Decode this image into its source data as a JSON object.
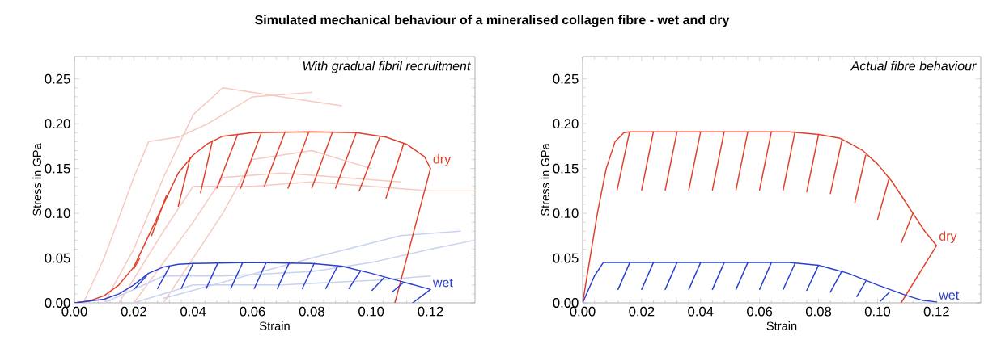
{
  "chart_data": [
    {
      "type": "line",
      "title": "Simulated mechanical behaviour of a mineralised collagen fibre - wet and dry",
      "xlabel": "Strain",
      "ylabel": "Stress in GPa",
      "annotations": [
        "With gradual fibril recruitment"
      ],
      "marker": "none",
      "line_style": "solid",
      "xlim": [
        0,
        0.135
      ],
      "ylim": [
        0,
        0.275
      ],
      "xticks": [
        {
          "value": 0,
          "label": "0.00"
        },
        {
          "value": 0.02,
          "label": "0.02"
        },
        {
          "value": 0.04,
          "label": "0.04"
        },
        {
          "value": 0.06,
          "label": "0.06"
        },
        {
          "value": 0.08,
          "label": "0.08"
        },
        {
          "value": 0.1,
          "label": "0.10"
        },
        {
          "value": 0.12,
          "label": "0.12"
        }
      ],
      "yticks": [
        {
          "value": 0,
          "label": "0.00"
        },
        {
          "value": 0.05,
          "label": "0.05"
        },
        {
          "value": 0.1,
          "label": "0.10"
        },
        {
          "value": 0.15,
          "label": "0.15"
        },
        {
          "value": 0.2,
          "label": "0.20"
        },
        {
          "value": 0.25,
          "label": "0.25"
        }
      ],
      "series": [
        {
          "color": "#f6c9c2",
          "x": [
            0.003,
            0.01,
            0.02,
            0.025,
            0.035,
            0.045,
            0.06,
            0.08
          ],
          "values": [
            0,
            0.05,
            0.14,
            0.18,
            0.185,
            0.2,
            0.23,
            0.235
          ]
        },
        {
          "color": "#f6c9c2",
          "x": [
            0.01,
            0.02,
            0.03,
            0.04,
            0.05,
            0.07,
            0.09
          ],
          "values": [
            0,
            0.06,
            0.14,
            0.21,
            0.24,
            0.23,
            0.22
          ]
        },
        {
          "color": "#f6c9c2",
          "x": [
            0.015,
            0.03,
            0.04,
            0.06,
            0.08,
            0.1,
            0.12,
            0.135
          ],
          "values": [
            0,
            0.08,
            0.13,
            0.13,
            0.135,
            0.13,
            0.125,
            0.125
          ]
        },
        {
          "color": "#f6c9c2",
          "x": [
            0.02,
            0.04,
            0.05,
            0.07,
            0.09,
            0.11
          ],
          "values": [
            0,
            0.09,
            0.14,
            0.145,
            0.14,
            0.135
          ]
        },
        {
          "color": "#f6c9c2",
          "x": [
            0.03,
            0.05,
            0.06,
            0.08,
            0.1
          ],
          "values": [
            0,
            0.1,
            0.16,
            0.17,
            0.15
          ]
        },
        {
          "color": "#c8d2f0",
          "x": [
            0.01,
            0.03,
            0.05,
            0.08,
            0.1,
            0.12,
            0.135
          ],
          "values": [
            0,
            0.03,
            0.03,
            0.035,
            0.045,
            0.06,
            0.07
          ]
        },
        {
          "color": "#c8d2f0",
          "x": [
            0.02,
            0.04,
            0.07,
            0.1,
            0.12
          ],
          "values": [
            0,
            0.02,
            0.02,
            0.025,
            0.03
          ]
        },
        {
          "color": "#c8d2f0",
          "x": [
            0.03,
            0.08,
            0.11,
            0.13
          ],
          "values": [
            0.005,
            0.05,
            0.075,
            0.08
          ]
        },
        {
          "name": "dry",
          "color": "#e0402a",
          "x": [
            0,
            0.005,
            0.01,
            0.015,
            0.02,
            0.025,
            0.03,
            0.035,
            0.04,
            0.045,
            0.05,
            0.06,
            0.08,
            0.095,
            0.105,
            0.112,
            0.118,
            0.12,
            0.108
          ],
          "values": [
            0,
            0.002,
            0.008,
            0.02,
            0.04,
            0.075,
            0.11,
            0.145,
            0.165,
            0.178,
            0.186,
            0.19,
            0.191,
            0.19,
            0.185,
            0.177,
            0.163,
            0.15,
            0
          ]
        },
        {
          "color": "#e0402a",
          "x": [
            0.022,
            0.02,
            0.021,
            0.031,
            0.026,
            0.028,
            0.039,
            0.035,
            0.037,
            0.0465,
            0.0425,
            0.044,
            0.055,
            0.048,
            0.05,
            0.063,
            0.056,
            0.058,
            0.071,
            0.064,
            0.066,
            0.079,
            0.072,
            0.074,
            0.087,
            0.08,
            0.082,
            0.095,
            0.088,
            0.09,
            0.103,
            0.096,
            0.098,
            0.111,
            0.105
          ],
          "values": [
            0.05,
            0.038,
            null,
            0.12,
            0.075,
            null,
            0.162,
            0.108,
            null,
            0.181,
            0.123,
            null,
            0.188,
            0.128,
            null,
            0.19,
            0.128,
            null,
            0.191,
            0.13,
            null,
            0.191,
            0.128,
            null,
            0.191,
            0.128,
            null,
            0.19,
            0.128,
            null,
            0.186,
            0.125,
            null,
            0.178,
            0.117
          ]
        },
        {
          "name": "wet",
          "color": "#2a3fd0",
          "x": [
            0,
            0.01,
            0.015,
            0.02,
            0.025,
            0.03,
            0.035,
            0.04,
            0.06,
            0.08,
            0.09,
            0.1,
            0.11,
            0.12,
            0.114
          ],
          "values": [
            0,
            0.004,
            0.01,
            0.02,
            0.033,
            0.04,
            0.043,
            0.044,
            0.045,
            0.044,
            0.041,
            0.033,
            0.024,
            0.015,
            0
          ]
        },
        {
          "color": "#2a3fd0",
          "x": [
            0.0243,
            0.0203,
            0.022,
            0.032,
            0.028,
            0.03,
            0.04,
            0.036,
            0.038,
            0.0484,
            0.0444,
            0.046,
            0.0567,
            0.0527,
            0.055,
            0.0646,
            0.0606,
            0.062,
            0.0724,
            0.0684,
            0.07,
            0.0808,
            0.0768,
            0.078,
            0.0887,
            0.0847,
            0.086,
            0.0965,
            0.0925,
            0.094,
            0.1043,
            0.1003,
            0.102,
            0.111,
            0.107
          ],
          "values": [
            0.03,
            0.016,
            null,
            0.04,
            0.016,
            null,
            0.044,
            0.016,
            null,
            0.045,
            0.016,
            null,
            0.045,
            0.016,
            null,
            0.045,
            0.016,
            null,
            0.045,
            0.016,
            null,
            0.044,
            0.016,
            null,
            0.041,
            0.016,
            null,
            0.036,
            0.016,
            null,
            0.028,
            0.014,
            null,
            0.023,
            0.012
          ]
        }
      ]
    },
    {
      "type": "line",
      "xlabel": "Strain",
      "ylabel": "Stress in GPa",
      "annotations": [
        "Actual fibre behaviour"
      ],
      "marker": "none",
      "line_style": "solid",
      "xlim": [
        0,
        0.135
      ],
      "ylim": [
        0,
        0.275
      ],
      "xticks": [
        {
          "value": 0,
          "label": "0.00"
        },
        {
          "value": 0.02,
          "label": "0.02"
        },
        {
          "value": 0.04,
          "label": "0.04"
        },
        {
          "value": 0.06,
          "label": "0.06"
        },
        {
          "value": 0.08,
          "label": "0.08"
        },
        {
          "value": 0.1,
          "label": "0.10"
        },
        {
          "value": 0.12,
          "label": "0.12"
        }
      ],
      "yticks": [
        {
          "value": 0,
          "label": "0.00"
        },
        {
          "value": 0.05,
          "label": "0.05"
        },
        {
          "value": 0.1,
          "label": "0.10"
        },
        {
          "value": 0.15,
          "label": "0.15"
        },
        {
          "value": 0.2,
          "label": "0.20"
        },
        {
          "value": 0.25,
          "label": "0.25"
        }
      ],
      "series": [
        {
          "name": "dry",
          "color": "#e0402a",
          "x": [
            0,
            0.005,
            0.008,
            0.011,
            0.014,
            0.016,
            0.07,
            0.08,
            0.087,
            0.09,
            0.095,
            0.1,
            0.105,
            0.11,
            0.113,
            0.116,
            0.12,
            0.108
          ],
          "values": [
            0,
            0.1,
            0.15,
            0.18,
            0.19,
            0.191,
            0.191,
            0.188,
            0.184,
            0.179,
            0.17,
            0.155,
            0.135,
            0.11,
            0.095,
            0.08,
            0.064,
            0
          ]
        },
        {
          "color": "#e0402a",
          "x": [
            0.0159,
            0.0117,
            0.014,
            0.024,
            0.02,
            0.022,
            0.032,
            0.028,
            0.03,
            0.04,
            0.036,
            0.038,
            0.048,
            0.044,
            0.046,
            0.056,
            0.052,
            0.054,
            0.064,
            0.06,
            0.062,
            0.072,
            0.068,
            0.07,
            0.08,
            0.076,
            0.078,
            0.088,
            0.084,
            0.086,
            0.096,
            0.0923,
            0.094,
            0.104,
            0.1,
            0.102,
            0.112,
            0.108
          ],
          "values": [
            0.191,
            0.126,
            null,
            0.191,
            0.126,
            null,
            0.191,
            0.126,
            null,
            0.191,
            0.126,
            null,
            0.191,
            0.126,
            null,
            0.191,
            0.126,
            null,
            0.191,
            0.126,
            null,
            0.191,
            0.126,
            null,
            0.188,
            0.124,
            null,
            0.183,
            0.122,
            null,
            0.165,
            0.112,
            null,
            0.14,
            0.093,
            null,
            0.1,
            0.067
          ]
        },
        {
          "name": "wet",
          "color": "#2a3fd0",
          "x": [
            0,
            0.004,
            0.007,
            0.07,
            0.08,
            0.09,
            0.1,
            0.11,
            0.115,
            0.12
          ],
          "values": [
            0,
            0.03,
            0.045,
            0.045,
            0.042,
            0.033,
            0.02,
            0.008,
            0.003,
            0.001
          ]
        },
        {
          "color": "#2a3fd0",
          "x": [
            0.016,
            0.012,
            0.014,
            0.024,
            0.02,
            0.022,
            0.032,
            0.028,
            0.03,
            0.04,
            0.036,
            0.038,
            0.048,
            0.044,
            0.046,
            0.056,
            0.052,
            0.054,
            0.064,
            0.06,
            0.062,
            0.072,
            0.068,
            0.07,
            0.08,
            0.076,
            0.078,
            0.088,
            0.084,
            0.086,
            0.096,
            0.093,
            0.095,
            0.104,
            0.101
          ],
          "values": [
            0.045,
            0.015,
            null,
            0.045,
            0.015,
            null,
            0.045,
            0.015,
            null,
            0.045,
            0.015,
            null,
            0.045,
            0.015,
            null,
            0.045,
            0.015,
            null,
            0.045,
            0.015,
            null,
            0.044,
            0.015,
            null,
            0.042,
            0.014,
            null,
            0.036,
            0.012,
            null,
            0.024,
            0.007,
            null,
            0.012,
            0.002
          ]
        }
      ]
    }
  ]
}
